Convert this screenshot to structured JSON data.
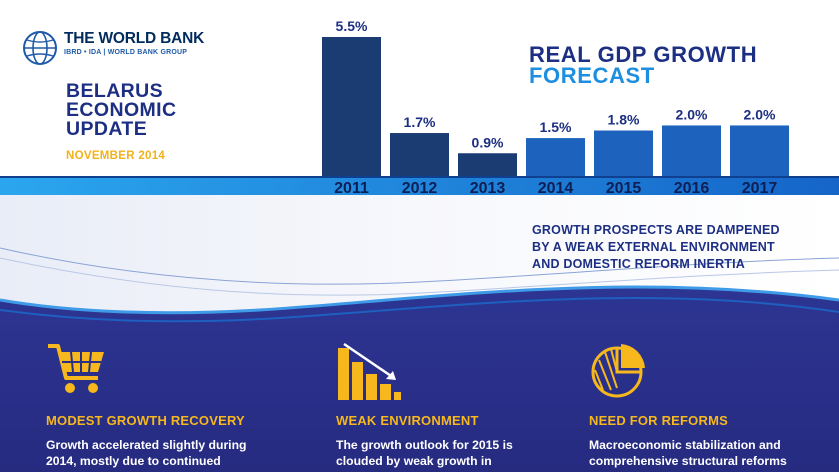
{
  "logo": {
    "name": "THE WORLD BANK",
    "sub": "IBRD • IDA | WORLD BANK GROUP"
  },
  "report": {
    "title_lines": [
      "BELARUS",
      "ECONOMIC",
      "UPDATE"
    ],
    "date": "NOVEMBER 2014"
  },
  "chart_data": {
    "type": "bar",
    "title_lines": [
      "REAL GDP GROWTH",
      "FORECAST"
    ],
    "categories": [
      "2011",
      "2012",
      "2013",
      "2014",
      "2015",
      "2016",
      "2017"
    ],
    "values": [
      5.5,
      1.7,
      0.9,
      1.5,
      1.8,
      2.0,
      2.0
    ],
    "data_labels": [
      "5.5%",
      "1.7%",
      "0.9%",
      "1.5%",
      "1.8%",
      "2.0%",
      "2.0%"
    ],
    "unit": "%",
    "ylim": [
      0,
      5.5
    ],
    "grid": false,
    "colors": {
      "actual": "#1a3c72",
      "forecast": "#1d63bd"
    },
    "forecast_from": "2014"
  },
  "headline_lines": [
    "GROWTH PROSPECTS ARE DAMPENED",
    "BY A WEAK EXTERNAL ENVIRONMENT",
    "AND DOMESTIC REFORM INERTIA"
  ],
  "panels": [
    {
      "title": "MODEST GROWTH RECOVERY",
      "icon": "shopping-cart-icon",
      "body_lines": [
        "Growth accelerated slightly during",
        "2014, mostly due to continued"
      ]
    },
    {
      "title": "WEAK ENVIRONMENT",
      "icon": "declining-bar-chart-icon",
      "body_lines": [
        "The growth outlook for 2015 is",
        "clouded by weak growth in"
      ]
    },
    {
      "title": "NEED FOR REFORMS",
      "icon": "pie-chart-icon",
      "body_lines": [
        "Macroeconomic stabilization and",
        "comprehensive structural reforms"
      ]
    }
  ],
  "colors": {
    "navy": "#1d2f83",
    "accent_blue": "#1e8fe0",
    "gold": "#f6b81c",
    "panel_bg": "#2a2f8a"
  }
}
